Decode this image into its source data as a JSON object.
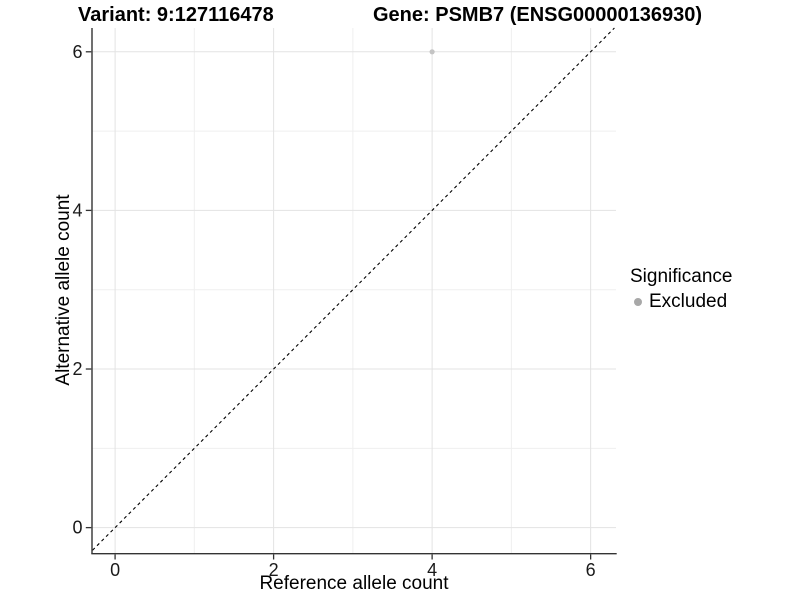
{
  "chart_data": {
    "type": "scatter",
    "title_left": "Variant: 9:127116478",
    "title_right": "Gene: PSMB7 (ENSG00000136930)",
    "xlabel": "Reference allele count",
    "ylabel": "Alternative allele count",
    "xlim": [
      -0.285,
      6.32
    ],
    "ylim": [
      -0.32,
      6.3
    ],
    "ticks": [
      0,
      2,
      4,
      6
    ],
    "minor_gridlines": [
      1,
      3,
      5
    ],
    "grid": true,
    "reference_line": {
      "type": "identity y=x",
      "style": "dashed"
    },
    "points": [
      {
        "x": 4,
        "y": 6,
        "significance": "Excluded"
      }
    ],
    "legend": {
      "title": "Significance",
      "position": "right",
      "items": [
        {
          "label": "Excluded",
          "color": "#a8a8a8"
        }
      ]
    },
    "colors": {
      "point": "#c4c4c4",
      "axis": "#333333",
      "grid_major": "#e3e3e3",
      "grid_minor": "#efefef",
      "tick_text": "#1a1a1a",
      "reference_line": "#000000"
    }
  }
}
